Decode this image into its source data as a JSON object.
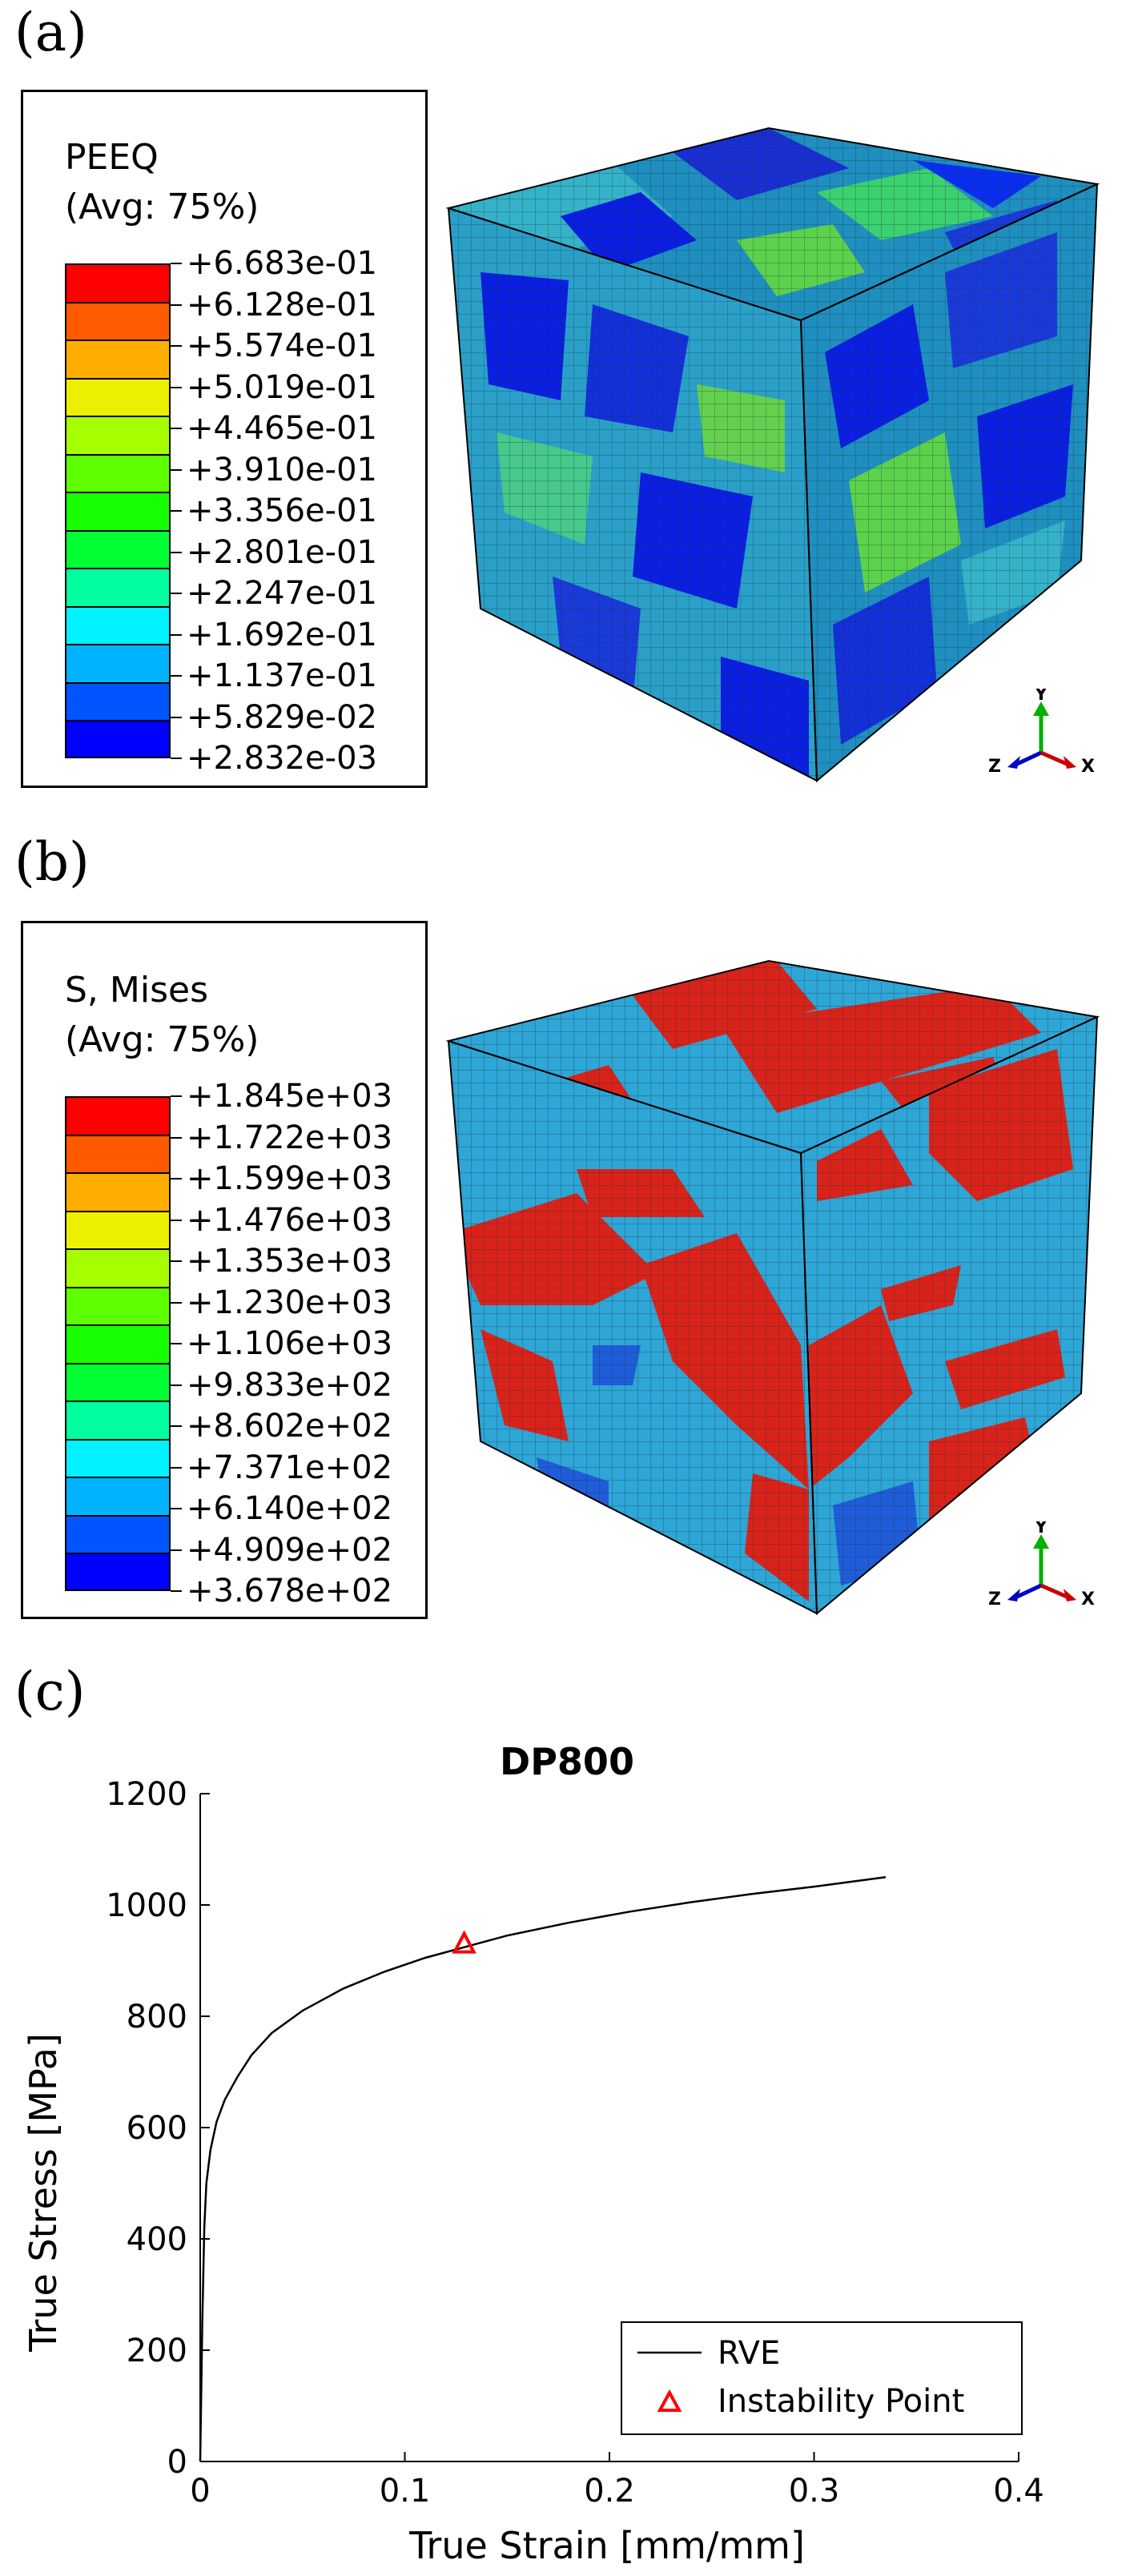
{
  "panels": [
    {
      "label": "(a)",
      "legend": {
        "title_line1": "PEEQ",
        "title_line2": "(Avg: 75%)",
        "values": [
          "+6.683e-01",
          "+6.128e-01",
          "+5.574e-01",
          "+5.019e-01",
          "+4.465e-01",
          "+3.910e-01",
          "+3.356e-01",
          "+2.801e-01",
          "+2.247e-01",
          "+1.692e-01",
          "+1.137e-01",
          "+5.829e-02",
          "+2.832e-03"
        ]
      },
      "triad": {
        "y": "Y",
        "z": "Z",
        "x": "X"
      }
    },
    {
      "label": "(b)",
      "legend": {
        "title_line1": "S, Mises",
        "title_line2": "(Avg: 75%)",
        "values": [
          "+1.845e+03",
          "+1.722e+03",
          "+1.599e+03",
          "+1.476e+03",
          "+1.353e+03",
          "+1.230e+03",
          "+1.106e+03",
          "+9.833e+02",
          "+8.602e+02",
          "+7.371e+02",
          "+6.140e+02",
          "+4.909e+02",
          "+3.678e+02"
        ]
      },
      "triad": {
        "y": "Y",
        "z": "Z",
        "x": "X"
      }
    },
    {
      "label": "(c)"
    }
  ],
  "contour_colors": [
    "#ff0000",
    "#ff5a00",
    "#ffae00",
    "#ecf000",
    "#a5ff00",
    "#5eff00",
    "#17ff00",
    "#00ff33",
    "#00ff9e",
    "#00f2ff",
    "#00b3ff",
    "#0055ff",
    "#0000ff"
  ],
  "chart_data": {
    "type": "line",
    "title": "DP800",
    "xlabel": "True Strain [mm/mm]",
    "ylabel": "True Stress [MPa]",
    "xlim": [
      0,
      0.4
    ],
    "ylim": [
      0,
      1200
    ],
    "xticks": [
      "0",
      "0.1",
      "0.2",
      "0.3",
      "0.4"
    ],
    "yticks": [
      "0",
      "200",
      "400",
      "600",
      "800",
      "1000",
      "1200"
    ],
    "legend_position": "bottom-right",
    "series": [
      {
        "name": "RVE",
        "color": "#000000",
        "x": [
          0,
          0.001,
          0.002,
          0.003,
          0.005,
          0.008,
          0.012,
          0.018,
          0.025,
          0.035,
          0.05,
          0.07,
          0.09,
          0.11,
          0.13,
          0.15,
          0.18,
          0.21,
          0.24,
          0.27,
          0.3,
          0.335
        ],
        "y": [
          0,
          250,
          420,
          500,
          560,
          610,
          650,
          690,
          730,
          770,
          810,
          850,
          880,
          905,
          925,
          945,
          968,
          988,
          1005,
          1020,
          1033,
          1050
        ]
      },
      {
        "name": "Instability Point",
        "color": "#ff0000",
        "marker": "triangle",
        "x": [
          0.129
        ],
        "y": [
          930
        ]
      }
    ]
  }
}
